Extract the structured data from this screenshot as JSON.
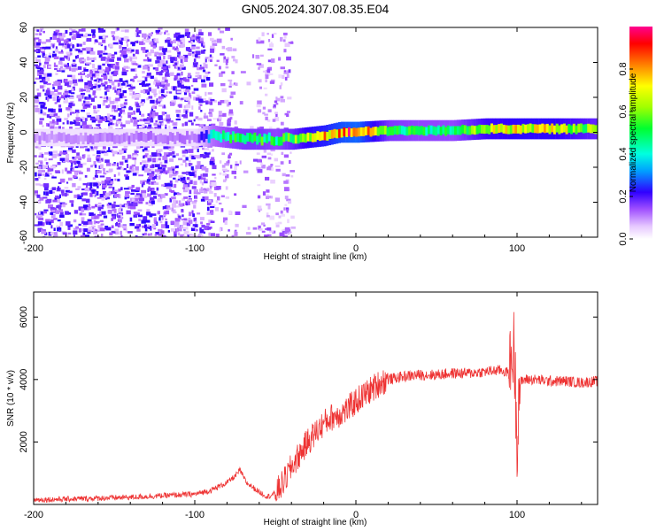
{
  "title": "GN05.2024.307.08.35.E04",
  "chart_data": [
    {
      "type": "heatmap",
      "title": "GN05.2024.307.08.35.E04",
      "xlabel": "Height of straight line (km)",
      "ylabel": "Frequency (Hz)",
      "xlim": [
        -200,
        150
      ],
      "ylim": [
        -60,
        60
      ],
      "x_ticks": [
        "-200",
        "-100",
        "0",
        "100"
      ],
      "y_ticks": [
        "-60",
        "-40",
        "-20",
        "0",
        "20",
        "40",
        "60"
      ],
      "colorbar": {
        "label": "Normalized spectral amplitude",
        "range": [
          0,
          1
        ],
        "ticks": [
          "0.0",
          "0.2",
          "0.4",
          "0.6",
          "0.8"
        ]
      },
      "description_of_features": {
        "noise_region_x": [
          -200,
          -45
        ],
        "signal_ridge": {
          "x": [
            -200,
            -150,
            -100,
            -90,
            -80,
            -70,
            -60,
            -50,
            -40,
            -30,
            -20,
            -10,
            0,
            20,
            40,
            60,
            80,
            100,
            120,
            150
          ],
          "freq": [
            -3,
            -3,
            -3,
            -2,
            -3,
            -4,
            -4,
            -4,
            -4,
            -3,
            -2,
            0,
            0,
            1,
            1,
            1,
            2,
            2,
            2,
            2
          ],
          "amplitude": [
            0.1,
            0.12,
            0.12,
            0.4,
            0.5,
            0.55,
            0.55,
            0.5,
            0.6,
            0.75,
            0.8,
            0.9,
            0.95,
            0.55,
            0.5,
            0.5,
            0.7,
            0.75,
            0.75,
            0.6
          ]
        }
      }
    },
    {
      "type": "line",
      "xlabel": "Height of straight line (km)",
      "ylabel": "SNR (10 * v/v)",
      "xlim": [
        -200,
        150
      ],
      "ylim": [
        0,
        6800
      ],
      "x_ticks": [
        "-200",
        "-100",
        "0",
        "100"
      ],
      "y_ticks": [
        "2000",
        "4000",
        "6000"
      ],
      "color": "#ee3333",
      "series": [
        {
          "x": [
            -200,
            -180,
            -160,
            -140,
            -120,
            -100,
            -90,
            -80,
            -75,
            -72,
            -68,
            -60,
            -55,
            -50,
            -45,
            -40,
            -35,
            -30,
            -25,
            -20,
            -15,
            -10,
            -5,
            0,
            5,
            10,
            15,
            20,
            25,
            30,
            40,
            50,
            60,
            70,
            80,
            90,
            95,
            98,
            99,
            100,
            101,
            102,
            105,
            110,
            120,
            130,
            140,
            150
          ],
          "values": [
            150,
            170,
            200,
            230,
            280,
            330,
            450,
            700,
            900,
            1100,
            700,
            400,
            250,
            350,
            700,
            1200,
            1600,
            2000,
            2300,
            2600,
            2800,
            2900,
            3050,
            3300,
            3500,
            3700,
            3900,
            4000,
            4050,
            4100,
            4150,
            4150,
            4200,
            4200,
            4250,
            4300,
            4200,
            5000,
            3800,
            2000,
            3500,
            3900,
            4000,
            4000,
            3950,
            3950,
            3900,
            3950
          ]
        }
      ]
    }
  ]
}
